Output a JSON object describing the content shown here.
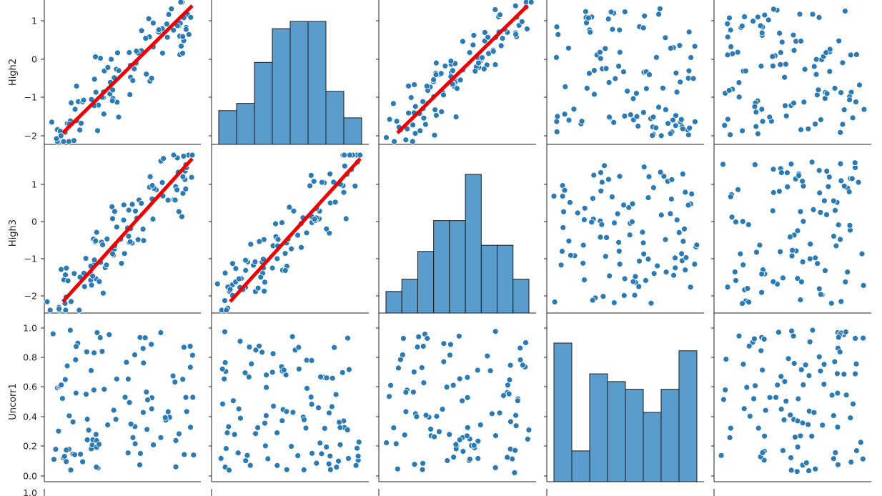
{
  "figure": {
    "type": "pairplot",
    "variables_visible": [
      "High2",
      "High3",
      "Uncorr1"
    ],
    "point_color": "#2a7ab5",
    "hist_color": "#5a9ccc",
    "fit_line_color": "#ee0000"
  },
  "row_labels": [
    "High2",
    "High3",
    "Uncorr1"
  ],
  "axes": {
    "High2": {
      "ticks": [
        1,
        0,
        -1,
        -2
      ],
      "tick_labels": [
        "1",
        "0",
        "−1",
        "−2"
      ],
      "ylim": [
        -2.25,
        1.75
      ]
    },
    "High3": {
      "ticks": [
        1,
        0,
        -1,
        -2
      ],
      "tick_labels": [
        "1",
        "0",
        "−1",
        "−2"
      ],
      "ylim": [
        -2.4,
        1.8
      ]
    },
    "Uncorr1": {
      "ticks": [
        1.0,
        0.8,
        0.6,
        0.4,
        0.2,
        0.0
      ],
      "tick_labels": [
        "1.0",
        "0.8",
        "0.6",
        "0.4",
        "0.2",
        "0.0"
      ],
      "ylim": [
        -0.03,
        1.04
      ]
    },
    "next_row": {
      "tick_labels": [
        "1.0"
      ]
    }
  },
  "chart_data": {
    "type": "scatter",
    "title": "",
    "panels": [
      {
        "row": "High2",
        "col": 0,
        "kind": "scatter",
        "fit": [
          [
            -1.85,
            -1.9
          ],
          [
            1.3,
            1.5
          ]
        ]
      },
      {
        "row": "High2",
        "col": 1,
        "kind": "hist",
        "counts": [
          14,
          17,
          34,
          48,
          51,
          51,
          22,
          11
        ]
      },
      {
        "row": "High2",
        "col": 2,
        "kind": "scatter",
        "fit": [
          [
            -1.7,
            -1.82
          ],
          [
            1.6,
            1.55
          ]
        ]
      },
      {
        "row": "High2",
        "col": 3,
        "kind": "scatter"
      },
      {
        "row": "High2",
        "col": 4,
        "kind": "scatter"
      },
      {
        "row": "High3",
        "col": 0,
        "kind": "scatter",
        "fit": [
          [
            -1.85,
            -2.2
          ],
          [
            1.3,
            1.4
          ]
        ]
      },
      {
        "row": "High3",
        "col": 1,
        "kind": "scatter",
        "fit": [
          [
            -2.0,
            -1.95
          ],
          [
            1.7,
            1.65
          ]
        ]
      },
      {
        "row": "High3",
        "col": 2,
        "kind": "hist",
        "counts": [
          7,
          11,
          20,
          30,
          30,
          45,
          22,
          22,
          11
        ]
      },
      {
        "row": "High3",
        "col": 3,
        "kind": "scatter"
      },
      {
        "row": "High3",
        "col": 4,
        "kind": "scatter"
      },
      {
        "row": "Uncorr1",
        "col": 0,
        "kind": "scatter"
      },
      {
        "row": "Uncorr1",
        "col": 1,
        "kind": "scatter"
      },
      {
        "row": "Uncorr1",
        "col": 2,
        "kind": "scatter"
      },
      {
        "row": "Uncorr1",
        "col": 3,
        "kind": "hist",
        "counts": [
          18,
          4,
          14,
          13,
          12,
          9,
          12,
          17
        ]
      },
      {
        "row": "Uncorr1",
        "col": 4,
        "kind": "scatter"
      }
    ]
  }
}
